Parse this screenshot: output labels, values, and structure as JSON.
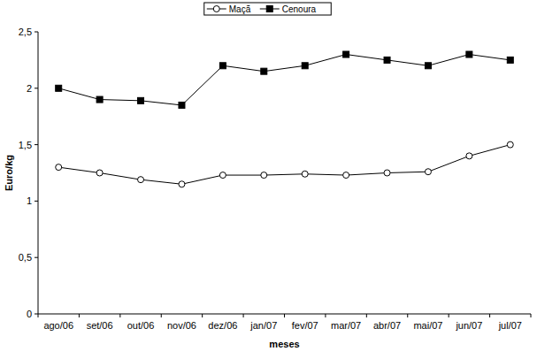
{
  "chart_data": {
    "type": "line",
    "x_label": "meses",
    "y_label": "Euro/kg",
    "categories": [
      "ago/06",
      "set/06",
      "out/06",
      "nov/06",
      "dez/06",
      "jan/07",
      "fev/07",
      "mar/07",
      "abr/07",
      "mai/07",
      "jun/07",
      "jul/07"
    ],
    "series": [
      {
        "name": "Maçã",
        "color": "#000000",
        "marker": "circle",
        "values": [
          1.3,
          1.25,
          1.19,
          1.15,
          1.23,
          1.23,
          1.24,
          1.23,
          1.25,
          1.26,
          1.4,
          1.5
        ]
      },
      {
        "name": "Cenoura",
        "color": "#000000",
        "marker": "square",
        "values": [
          2.0,
          1.9,
          1.89,
          1.85,
          2.2,
          2.15,
          2.2,
          2.3,
          2.25,
          2.2,
          2.3,
          2.25
        ]
      }
    ],
    "ylim": [
      0,
      2.5
    ],
    "yticks": [
      0,
      {
        "value": 0.5,
        "label": "0,5"
      },
      1,
      {
        "value": 1.5,
        "label": "1,5"
      },
      2,
      {
        "value": 2.5,
        "label": "2,5"
      }
    ],
    "grid": false,
    "legend": "top"
  }
}
